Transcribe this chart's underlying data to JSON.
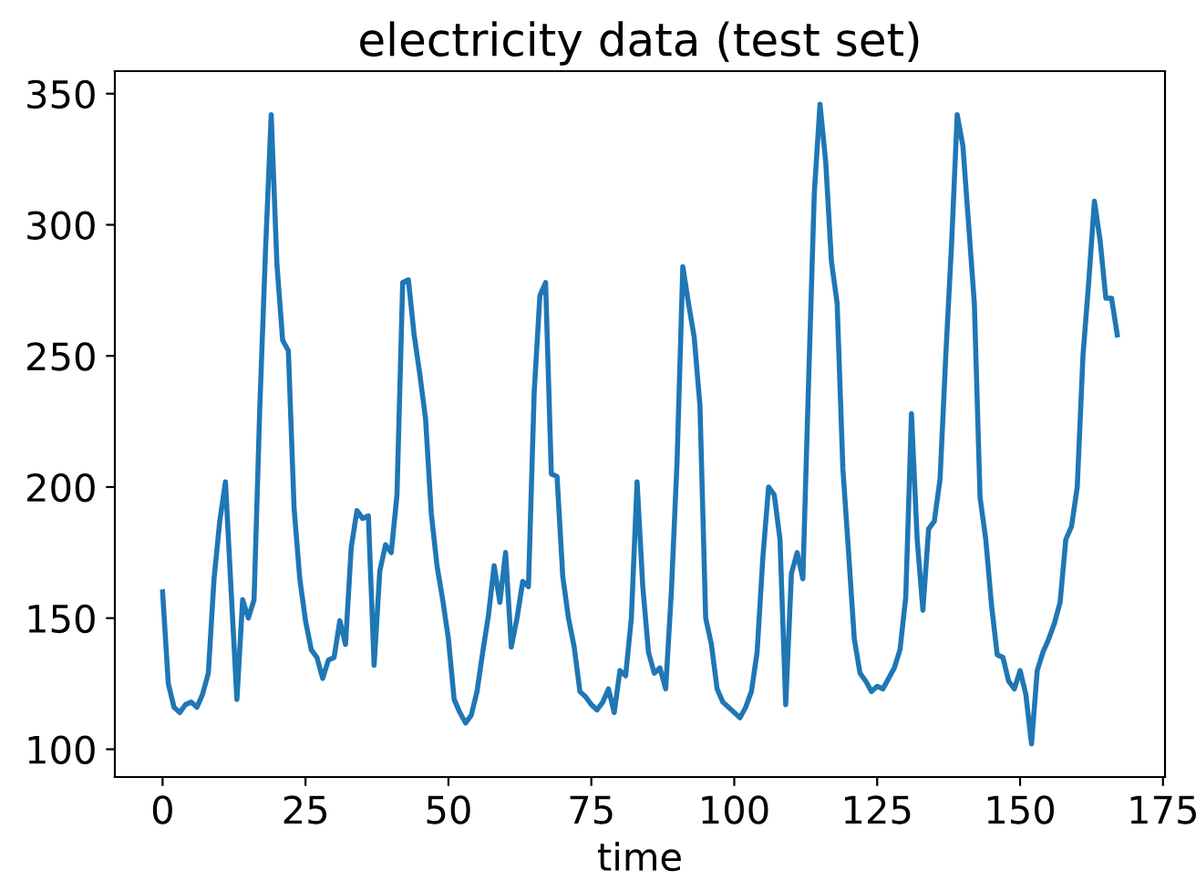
{
  "chart_data": {
    "type": "line",
    "title": "electricity data (test set)",
    "xlabel": "time",
    "x": [
      0,
      1,
      2,
      3,
      4,
      5,
      6,
      7,
      8,
      9,
      10,
      11,
      12,
      13,
      14,
      15,
      16,
      17,
      18,
      19,
      20,
      21,
      22,
      23,
      24,
      25,
      26,
      27,
      28,
      29,
      30,
      31,
      32,
      33,
      34,
      35,
      36,
      37,
      38,
      39,
      40,
      41,
      42,
      43,
      44,
      45,
      46,
      47,
      48,
      49,
      50,
      51,
      52,
      53,
      54,
      55,
      56,
      57,
      58,
      59,
      60,
      61,
      62,
      63,
      64,
      65,
      66,
      67,
      68,
      69,
      70,
      71,
      72,
      73,
      74,
      75,
      76,
      77,
      78,
      79,
      80,
      81,
      82,
      83,
      84,
      85,
      86,
      87,
      88,
      89,
      90,
      91,
      92,
      93,
      94,
      95,
      96,
      97,
      98,
      99,
      100,
      101,
      102,
      103,
      104,
      105,
      106,
      107,
      108,
      109,
      110,
      111,
      112,
      113,
      114,
      115,
      116,
      117,
      118,
      119,
      120,
      121,
      122,
      123,
      124,
      125,
      126,
      127,
      128,
      129,
      130,
      131,
      132,
      133,
      134,
      135,
      136,
      137,
      138,
      139,
      140,
      141,
      142,
      143,
      144,
      145,
      146,
      147,
      148,
      149,
      150,
      151,
      152,
      153,
      154,
      155,
      156,
      157,
      158,
      159,
      160,
      161,
      162,
      163,
      164,
      165,
      166,
      167
    ],
    "series": [
      {
        "color": "#1f77b4",
        "values": [
          160,
          125,
          116,
          114,
          117,
          118,
          116,
          121,
          129,
          165,
          187,
          202,
          160,
          119,
          157,
          150,
          157,
          230,
          290,
          342,
          285,
          256,
          252,
          192,
          165,
          149,
          138,
          135,
          127,
          134,
          135,
          149,
          140,
          177,
          191,
          188,
          189,
          132,
          168,
          178,
          175,
          197,
          278,
          279,
          258,
          243,
          226,
          190,
          170,
          157,
          142,
          119,
          114,
          110,
          113,
          122,
          137,
          151,
          170,
          156,
          175,
          139,
          150,
          164,
          162,
          236,
          273,
          278,
          205,
          204,
          166,
          150,
          139,
          122,
          120,
          117,
          115,
          118,
          123,
          114,
          130,
          128,
          150,
          202,
          162,
          137,
          129,
          131,
          123,
          160,
          210,
          284,
          270,
          257,
          231,
          150,
          140,
          123,
          118,
          116,
          114,
          112,
          116,
          122,
          137,
          173,
          200,
          197,
          180,
          117,
          167,
          175,
          165,
          240,
          312,
          346,
          324,
          286,
          270,
          207,
          175,
          142,
          129,
          126,
          122,
          124,
          123,
          127,
          131,
          138,
          158,
          228,
          180,
          153,
          184,
          187,
          203,
          250,
          292,
          342,
          330,
          300,
          270,
          196,
          180,
          155,
          136,
          135,
          126,
          123,
          130,
          121,
          102,
          130,
          137,
          142,
          148,
          156,
          180,
          185,
          200,
          250,
          278,
          309,
          294,
          272,
          272,
          258
        ]
      }
    ],
    "xlim": [
      -8.35,
      175.35
    ],
    "ylim": [
      89.4,
      358.6
    ],
    "xticks": [
      0,
      25,
      50,
      75,
      100,
      125,
      150,
      175
    ],
    "yticks": [
      100,
      150,
      200,
      250,
      300,
      350
    ],
    "grid": false,
    "legend": false
  }
}
